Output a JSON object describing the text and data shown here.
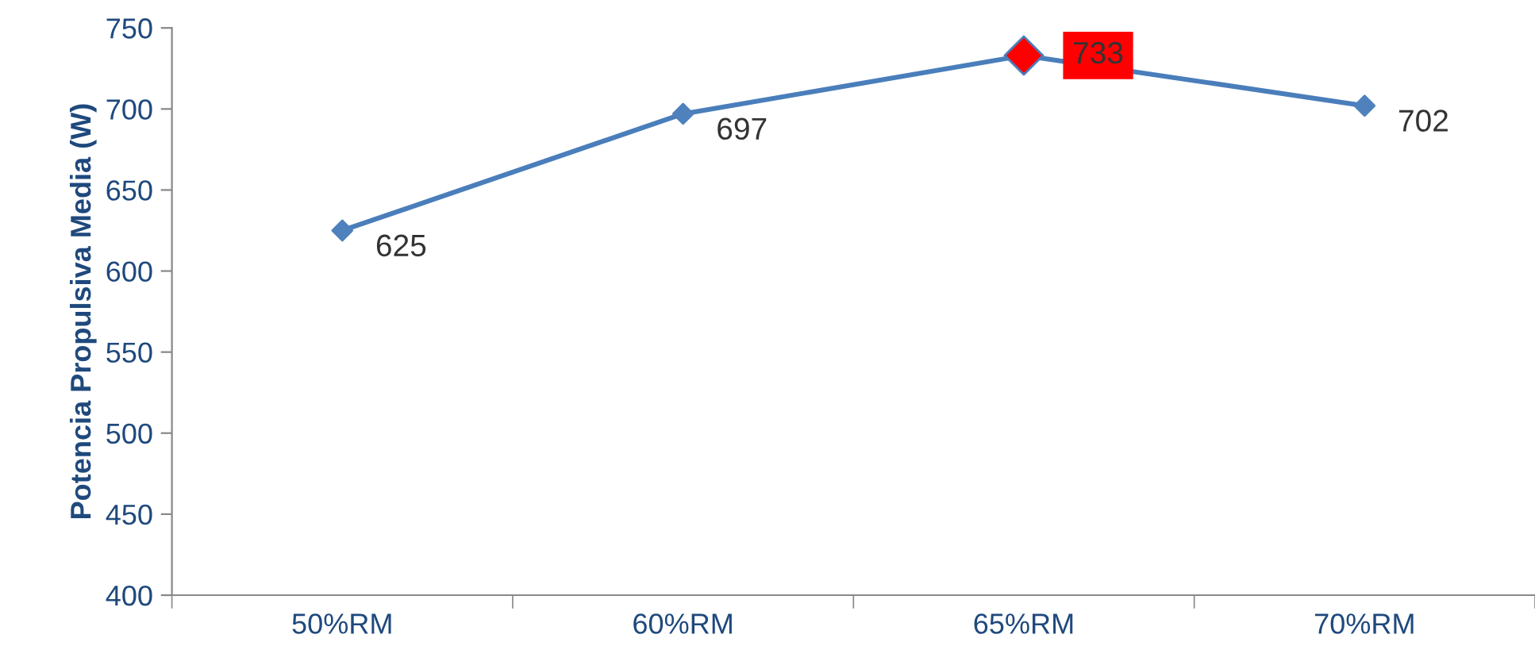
{
  "chart_data": {
    "type": "line",
    "ylabel": "Potencia Propulsiva Media (W)",
    "categories": [
      "50%RM",
      "60%RM",
      "65%RM",
      "70%RM"
    ],
    "series": [
      {
        "color": "#4a7ebb",
        "values": [
          625,
          697,
          733,
          702
        ],
        "colors": [
          "#4f81bd",
          "#4f81bd",
          "#ff0000",
          "#4f81bd"
        ]
      }
    ],
    "ylim": [
      400,
      750
    ],
    "yticks": [
      400,
      450,
      500,
      550,
      600,
      650,
      700,
      750
    ],
    "grid": false,
    "legend": false,
    "marker": "diamond",
    "line_style": "solid",
    "data_labels": true
  }
}
